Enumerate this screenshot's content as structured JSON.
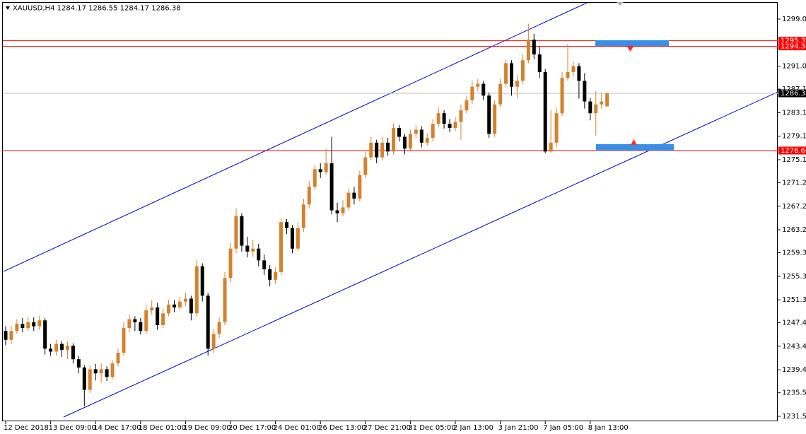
{
  "chart_data": {
    "type": "candlestick",
    "title": "XAUUSD,H4  1284.17 1286.55 1284.17 1286.38",
    "categories": [
      "12 Dec 2018",
      null,
      null,
      null,
      null,
      null,
      null,
      null,
      "13 Dec 09:00",
      null,
      null,
      null,
      null,
      null,
      null,
      null,
      "14 Dec 17:00",
      null,
      null,
      null,
      null,
      null,
      null,
      null,
      "18 Dec 01:00",
      null,
      null,
      null,
      null,
      null,
      null,
      null,
      "19 Dec 09:00",
      null,
      null,
      null,
      null,
      null,
      null,
      null,
      "20 Dec 17:00",
      null,
      null,
      null,
      null,
      null,
      null,
      null,
      "24 Dec 01:00",
      null,
      null,
      null,
      null,
      null,
      null,
      null,
      "26 Dec 13:00",
      null,
      null,
      null,
      null,
      null,
      null,
      null,
      "27 Dec 21:00",
      null,
      null,
      null,
      null,
      null,
      null,
      null,
      "31 Dec 05:00",
      null,
      null,
      null,
      null,
      null,
      null,
      null,
      "2 Jan 13:00",
      null,
      null,
      null,
      null,
      null,
      null,
      null,
      "3 Jan 21:00",
      null,
      null,
      null,
      null,
      null,
      null,
      null,
      "7 Jan 05:00",
      null,
      null,
      null,
      null,
      null,
      null,
      null,
      "8 Jan 13:00",
      null,
      null,
      null
    ],
    "open": [
      1246.0,
      1244.5,
      1246.0,
      1247.2,
      1246.5,
      1247.5,
      1246.8,
      1247.8,
      1243.0,
      1242.5,
      1243.8,
      1242.8,
      1243.5,
      1241.2,
      1239.8,
      1236.0,
      1239.5,
      1238.8,
      1239.5,
      1238.2,
      1240.5,
      1242.3,
      1246.5,
      1248.0,
      1247.5,
      1246.0,
      1249.5,
      1250.0,
      1247.0,
      1249.0,
      1250.5,
      1250.0,
      1251.0,
      1251.5,
      1249.0,
      1257.0,
      1252.0,
      1243.0,
      1245.5,
      1247.5,
      1255.0,
      1260.0,
      1265.5,
      1260.5,
      1259.5,
      1260.0,
      1258.0,
      1256.5,
      1254.7,
      1256.0,
      1264.5,
      1263.5,
      1260.0,
      1263.5,
      1267.5,
      1270.5,
      1273.5,
      1273.0,
      1274.5,
      1266.5,
      1266.0,
      1267.0,
      1269.5,
      1268.5,
      1272.5,
      1275.5,
      1278.0,
      1275.5,
      1278.0,
      1276.5,
      1280.5,
      1279.0,
      1277.0,
      1279.5,
      1280.2,
      1278.0,
      1278.8,
      1281.2,
      1283.0,
      1281.2,
      1280.5,
      1281.5,
      1283.5,
      1285.2,
      1287.5,
      1288.0,
      1286.0,
      1279.5,
      1284.5,
      1288.0,
      1291.5,
      1287.5,
      1288.5,
      1292.0,
      1295.5,
      1293.0,
      1290.0,
      1276.5,
      1278.0,
      1283.0,
      1289.0,
      1290.0,
      1291.0,
      1288.5,
      1285.0,
      1283.0,
      1284.5,
      1284.17
    ],
    "high": [
      1246.8,
      1246.9,
      1248.0,
      1248.2,
      1248.4,
      1248.3,
      1248.6,
      1248.2,
      1243.8,
      1244.5,
      1244.3,
      1244.2,
      1243.9,
      1241.8,
      1240.2,
      1240.2,
      1240.4,
      1240.5,
      1240.0,
      1241.0,
      1243.0,
      1247.5,
      1248.8,
      1248.5,
      1248.2,
      1250.5,
      1251.2,
      1250.8,
      1249.8,
      1251.3,
      1251.2,
      1251.8,
      1252.5,
      1252.0,
      1258.2,
      1257.5,
      1252.5,
      1246.3,
      1248.3,
      1256.0,
      1261.0,
      1266.8,
      1266.0,
      1262.0,
      1261.5,
      1260.8,
      1259.0,
      1257.2,
      1256.8,
      1265.2,
      1265.0,
      1264.0,
      1264.5,
      1268.5,
      1271.5,
      1274.2,
      1274.5,
      1277.0,
      1279.0,
      1267.8,
      1268.2,
      1270.2,
      1270.5,
      1273.2,
      1276.5,
      1279.0,
      1278.5,
      1279.0,
      1278.8,
      1281.2,
      1281.0,
      1279.5,
      1280.2,
      1281.0,
      1280.8,
      1279.6,
      1282.0,
      1284.0,
      1283.5,
      1282.0,
      1282.3,
      1284.5,
      1286.0,
      1288.6,
      1288.8,
      1288.5,
      1286.5,
      1285.2,
      1288.8,
      1292.2,
      1292.0,
      1289.5,
      1293.0,
      1298.2,
      1296.5,
      1294.3,
      1290.5,
      1283.5,
      1284.0,
      1290.0,
      1294.8,
      1291.8,
      1291.5,
      1289.8,
      1285.6,
      1286.8,
      1286.5,
      1286.55
    ],
    "low": [
      1243.6,
      1243.8,
      1245.5,
      1245.8,
      1246.0,
      1246.0,
      1246.2,
      1242.0,
      1241.8,
      1241.8,
      1241.6,
      1241.2,
      1240.5,
      1238.8,
      1233.2,
      1235.5,
      1237.6,
      1237.2,
      1237.5,
      1237.8,
      1240.0,
      1241.8,
      1245.8,
      1246.0,
      1245.4,
      1245.5,
      1248.8,
      1246.2,
      1246.5,
      1248.5,
      1249.2,
      1249.5,
      1250.2,
      1247.8,
      1248.5,
      1251.0,
      1241.8,
      1242.2,
      1244.8,
      1247.0,
      1254.3,
      1259.2,
      1259.5,
      1258.5,
      1258.6,
      1257.0,
      1255.5,
      1253.6,
      1254.0,
      1255.5,
      1262.5,
      1259.2,
      1259.5,
      1262.8,
      1266.8,
      1270.0,
      1272.0,
      1272.5,
      1265.8,
      1264.5,
      1265.5,
      1266.5,
      1267.5,
      1268.0,
      1272.0,
      1275.0,
      1274.5,
      1275.0,
      1275.8,
      1276.0,
      1278.2,
      1276.0,
      1276.5,
      1278.8,
      1277.2,
      1277.5,
      1278.2,
      1280.6,
      1280.4,
      1279.8,
      1280.0,
      1278.5,
      1283.0,
      1284.6,
      1286.8,
      1285.2,
      1278.8,
      1279.0,
      1284.0,
      1287.4,
      1286.0,
      1285.5,
      1288.0,
      1291.5,
      1292.2,
      1289.0,
      1276.2,
      1276.3,
      1277.2,
      1282.5,
      1288.5,
      1289.2,
      1285.5,
      1283.8,
      1281.8,
      1279.2,
      1283.8,
      1284.17
    ],
    "close": [
      1244.5,
      1246.0,
      1247.2,
      1246.5,
      1247.5,
      1246.8,
      1247.8,
      1243.0,
      1242.5,
      1243.8,
      1242.8,
      1243.5,
      1241.2,
      1239.8,
      1236.0,
      1239.5,
      1238.8,
      1239.5,
      1238.2,
      1240.5,
      1242.3,
      1246.5,
      1248.0,
      1247.5,
      1246.0,
      1249.5,
      1250.0,
      1247.0,
      1249.0,
      1250.5,
      1250.0,
      1251.0,
      1251.5,
      1249.0,
      1257.0,
      1252.0,
      1243.0,
      1245.5,
      1247.5,
      1255.0,
      1260.0,
      1265.5,
      1260.5,
      1259.5,
      1260.0,
      1258.0,
      1256.5,
      1254.7,
      1256.0,
      1264.5,
      1263.5,
      1260.0,
      1263.5,
      1267.5,
      1270.5,
      1273.5,
      1273.0,
      1274.5,
      1266.5,
      1266.0,
      1267.0,
      1269.5,
      1268.5,
      1272.5,
      1275.5,
      1278.0,
      1275.5,
      1278.0,
      1276.5,
      1280.5,
      1279.0,
      1277.0,
      1279.5,
      1280.2,
      1278.0,
      1278.8,
      1281.2,
      1283.0,
      1281.2,
      1280.5,
      1281.5,
      1283.5,
      1285.2,
      1287.5,
      1288.0,
      1286.0,
      1279.5,
      1284.5,
      1288.0,
      1291.5,
      1287.5,
      1288.5,
      1292.0,
      1295.5,
      1293.0,
      1290.0,
      1276.5,
      1278.0,
      1283.0,
      1289.0,
      1290.0,
      1291.0,
      1288.5,
      1285.0,
      1283.0,
      1284.5,
      1285.0,
      1286.38
    ],
    "up_color": "#d4822e",
    "down_color": "#000000",
    "ylim": [
      1230.66,
      1302.24
    ],
    "yticks": [
      {
        "value": 1299.0,
        "label": "1299.00"
      },
      {
        "value": 1291.0,
        "label": "1291.00"
      },
      {
        "value": 1287.1,
        "label": "1287.10"
      },
      {
        "value": 1283.1,
        "label": "1283.10"
      },
      {
        "value": 1279.1,
        "label": "1279.10"
      },
      {
        "value": 1275.1,
        "label": "1275.10"
      },
      {
        "value": 1271.2,
        "label": "1271.20"
      },
      {
        "value": 1267.2,
        "label": "1267.20"
      },
      {
        "value": 1263.2,
        "label": "1263.20"
      },
      {
        "value": 1259.3,
        "label": "1259.30"
      },
      {
        "value": 1255.3,
        "label": "1255.30"
      },
      {
        "value": 1251.3,
        "label": "1251.30"
      },
      {
        "value": 1247.4,
        "label": "1247.40"
      },
      {
        "value": 1243.4,
        "label": "1243.40"
      },
      {
        "value": 1239.4,
        "label": "1239.40"
      },
      {
        "value": 1235.5,
        "label": "1235.50"
      },
      {
        "value": 1231.5,
        "label": "1231.50"
      }
    ],
    "current_price": {
      "value": 1286.38,
      "color": "#c0c0c0"
    },
    "levels": [
      {
        "value": 1295.32,
        "color": "#ff0000"
      },
      {
        "value": 1294.36,
        "color": "#ff0000"
      },
      {
        "value": 1276.66,
        "color": "#ff0000"
      }
    ],
    "trendlines": [
      {
        "start_index": -0.38,
        "start_price": 1256.12,
        "end_index": 103.4,
        "end_price": 1301.76,
        "color": "#0000cc"
      },
      {
        "start_index": 10.3,
        "start_price": 1231.38,
        "end_index": 137.4,
        "end_price": 1286.63,
        "color": "#0000cc"
      }
    ]
  }
}
